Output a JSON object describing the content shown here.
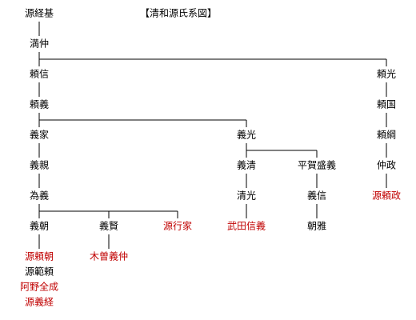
{
  "title": "【清和源氏系図】",
  "nodes": [
    {
      "label": "源経基"
    },
    {
      "label": "満仲"
    },
    {
      "label": "頼信"
    },
    {
      "label": "頼光"
    },
    {
      "label": "頼義"
    },
    {
      "label": "頼国"
    },
    {
      "label": "義家"
    },
    {
      "label": "義光"
    },
    {
      "label": "頼綱"
    },
    {
      "label": "義親"
    },
    {
      "label": "義清"
    },
    {
      "label": "平賀盛義"
    },
    {
      "label": "仲政"
    },
    {
      "label": "為義"
    },
    {
      "label": "清光"
    },
    {
      "label": "義信"
    },
    {
      "label": "源頼政"
    },
    {
      "label": "義朝"
    },
    {
      "label": "義賢"
    },
    {
      "label": "源行家"
    },
    {
      "label": "武田信義"
    },
    {
      "label": "朝雅"
    },
    {
      "label": "源頼朝"
    },
    {
      "label": "木曽義仲"
    },
    {
      "label": "源範頼"
    },
    {
      "label": "阿野全成"
    },
    {
      "label": "源義経"
    }
  ]
}
